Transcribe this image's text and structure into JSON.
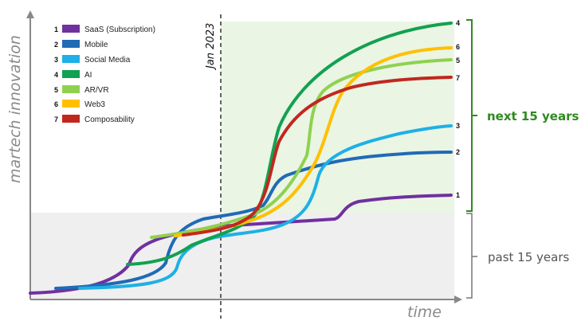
{
  "axis": {
    "y_label": "martech innovation",
    "x_label": "time"
  },
  "marker": {
    "label": "Jan 2023"
  },
  "brackets": {
    "future": "next 15 years",
    "past": "past 15 years"
  },
  "series": [
    {
      "num": "1",
      "name": "SaaS (Subscription)",
      "color": "#7030a0"
    },
    {
      "num": "2",
      "name": "Mobile",
      "color": "#1f6bb5"
    },
    {
      "num": "3",
      "name": "Social Media",
      "color": "#1eb0e6"
    },
    {
      "num": "4",
      "name": "AI",
      "color": "#12a150"
    },
    {
      "num": "5",
      "name": "AR/VR",
      "color": "#8fd14f"
    },
    {
      "num": "6",
      "name": "Web3",
      "color": "#ffc000"
    },
    {
      "num": "7",
      "name": "Composability",
      "color": "#c0281e"
    }
  ],
  "colors": {
    "future_region": "#eaf5e4",
    "past_region": "#efefef",
    "future_bracket": "#2f8a1f",
    "axis": "#888888"
  }
}
